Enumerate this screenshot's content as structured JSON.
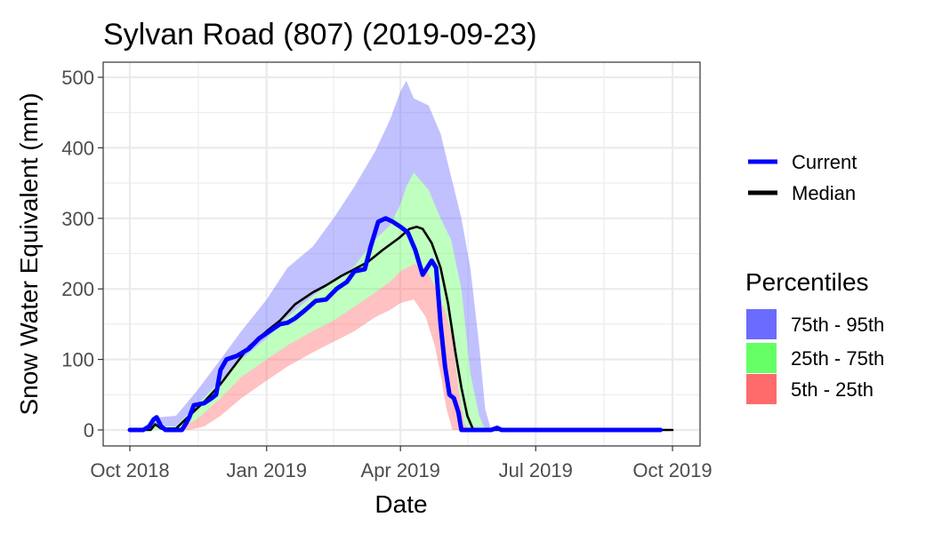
{
  "chart_data": {
    "type": "line",
    "title": "Sylvan Road (807) (2019-09-23)",
    "xlabel": "Date",
    "ylabel": "Snow Water Equivalent (mm)",
    "xlim": [
      "2018-10-01",
      "2019-10-01"
    ],
    "ylim": [
      0,
      500
    ],
    "x_ticks": [
      {
        "date": "2018-10-01",
        "label": "Oct 2018"
      },
      {
        "date": "2019-01-01",
        "label": "Jan 2019"
      },
      {
        "date": "2019-04-01",
        "label": "Apr 2019"
      },
      {
        "date": "2019-07-01",
        "label": "Jul 2019"
      },
      {
        "date": "2019-10-01",
        "label": "Oct 2019"
      }
    ],
    "y_ticks": [
      0,
      100,
      200,
      300,
      400,
      500
    ],
    "grid": true,
    "legend_position": "right",
    "series": [
      {
        "name": "Current",
        "color": "#0000ff",
        "points": [
          [
            "2018-10-01",
            0
          ],
          [
            "2018-10-10",
            0
          ],
          [
            "2018-10-14",
            5
          ],
          [
            "2018-10-17",
            15
          ],
          [
            "2018-10-19",
            18
          ],
          [
            "2018-10-22",
            5
          ],
          [
            "2018-10-25",
            0
          ],
          [
            "2018-11-05",
            0
          ],
          [
            "2018-11-08",
            10
          ],
          [
            "2018-11-10",
            18
          ],
          [
            "2018-11-13",
            35
          ],
          [
            "2018-11-20",
            38
          ],
          [
            "2018-11-25",
            45
          ],
          [
            "2018-11-28",
            50
          ],
          [
            "2018-12-01",
            85
          ],
          [
            "2018-12-05",
            100
          ],
          [
            "2018-12-12",
            105
          ],
          [
            "2018-12-20",
            115
          ],
          [
            "2018-12-27",
            130
          ],
          [
            "2019-01-03",
            140
          ],
          [
            "2019-01-10",
            150
          ],
          [
            "2019-01-15",
            152
          ],
          [
            "2019-01-20",
            158
          ],
          [
            "2019-01-27",
            170
          ],
          [
            "2019-02-03",
            183
          ],
          [
            "2019-02-10",
            185
          ],
          [
            "2019-02-17",
            200
          ],
          [
            "2019-02-24",
            210
          ],
          [
            "2019-03-01",
            225
          ],
          [
            "2019-03-08",
            228
          ],
          [
            "2019-03-12",
            260
          ],
          [
            "2019-03-17",
            295
          ],
          [
            "2019-03-22",
            300
          ],
          [
            "2019-03-27",
            295
          ],
          [
            "2019-04-01",
            288
          ],
          [
            "2019-04-06",
            280
          ],
          [
            "2019-04-11",
            255
          ],
          [
            "2019-04-16",
            220
          ],
          [
            "2019-04-19",
            230
          ],
          [
            "2019-04-22",
            240
          ],
          [
            "2019-04-25",
            230
          ],
          [
            "2019-04-28",
            150
          ],
          [
            "2019-05-01",
            90
          ],
          [
            "2019-05-04",
            50
          ],
          [
            "2019-05-07",
            45
          ],
          [
            "2019-05-10",
            25
          ],
          [
            "2019-05-12",
            0
          ],
          [
            "2019-06-01",
            0
          ],
          [
            "2019-06-05",
            3
          ],
          [
            "2019-06-08",
            0
          ],
          [
            "2019-09-23",
            0
          ]
        ]
      },
      {
        "name": "Median",
        "color": "#000000",
        "points": [
          [
            "2018-10-01",
            0
          ],
          [
            "2018-10-15",
            0
          ],
          [
            "2018-10-18",
            8
          ],
          [
            "2018-10-22",
            2
          ],
          [
            "2018-11-01",
            2
          ],
          [
            "2018-11-10",
            20
          ],
          [
            "2018-11-20",
            40
          ],
          [
            "2018-12-01",
            65
          ],
          [
            "2018-12-10",
            90
          ],
          [
            "2018-12-20",
            118
          ],
          [
            "2019-01-01",
            140
          ],
          [
            "2019-01-10",
            155
          ],
          [
            "2019-01-20",
            178
          ],
          [
            "2019-02-01",
            195
          ],
          [
            "2019-02-10",
            205
          ],
          [
            "2019-02-20",
            218
          ],
          [
            "2019-03-01",
            228
          ],
          [
            "2019-03-10",
            238
          ],
          [
            "2019-03-20",
            255
          ],
          [
            "2019-03-31",
            272
          ],
          [
            "2019-04-07",
            285
          ],
          [
            "2019-04-12",
            288
          ],
          [
            "2019-04-16",
            285
          ],
          [
            "2019-04-22",
            265
          ],
          [
            "2019-04-28",
            230
          ],
          [
            "2019-05-03",
            180
          ],
          [
            "2019-05-08",
            110
          ],
          [
            "2019-05-12",
            60
          ],
          [
            "2019-05-16",
            20
          ],
          [
            "2019-05-20",
            0
          ],
          [
            "2019-10-01",
            0
          ]
        ]
      }
    ],
    "bands": [
      {
        "name": "75th - 95th",
        "color": "#6b6bff",
        "upper": [
          [
            "2018-10-01",
            0
          ],
          [
            "2018-10-10",
            2
          ],
          [
            "2018-10-20",
            18
          ],
          [
            "2018-11-01",
            20
          ],
          [
            "2018-11-15",
            55
          ],
          [
            "2018-12-01",
            100
          ],
          [
            "2018-12-15",
            140
          ],
          [
            "2019-01-01",
            185
          ],
          [
            "2019-01-15",
            230
          ],
          [
            "2019-02-01",
            260
          ],
          [
            "2019-02-15",
            300
          ],
          [
            "2019-03-01",
            345
          ],
          [
            "2019-03-15",
            395
          ],
          [
            "2019-03-25",
            440
          ],
          [
            "2019-04-01",
            480
          ],
          [
            "2019-04-05",
            495
          ],
          [
            "2019-04-10",
            470
          ],
          [
            "2019-04-20",
            460
          ],
          [
            "2019-04-28",
            420
          ],
          [
            "2019-05-05",
            360
          ],
          [
            "2019-05-12",
            300
          ],
          [
            "2019-05-18",
            230
          ],
          [
            "2019-05-24",
            120
          ],
          [
            "2019-05-28",
            30
          ],
          [
            "2019-06-01",
            0
          ],
          [
            "2019-10-01",
            0
          ]
        ],
        "lower": [
          [
            "2018-10-01",
            0
          ],
          [
            "2018-10-20",
            5
          ],
          [
            "2018-11-01",
            5
          ],
          [
            "2018-11-15",
            35
          ],
          [
            "2018-12-01",
            70
          ],
          [
            "2018-12-15",
            100
          ],
          [
            "2019-01-01",
            130
          ],
          [
            "2019-01-15",
            160
          ],
          [
            "2019-02-01",
            190
          ],
          [
            "2019-02-15",
            210
          ],
          [
            "2019-03-01",
            232
          ],
          [
            "2019-03-15",
            270
          ],
          [
            "2019-03-25",
            290
          ],
          [
            "2019-04-01",
            320
          ],
          [
            "2019-04-05",
            345
          ],
          [
            "2019-04-10",
            365
          ],
          [
            "2019-04-20",
            340
          ],
          [
            "2019-04-28",
            300
          ],
          [
            "2019-05-05",
            270
          ],
          [
            "2019-05-12",
            200
          ],
          [
            "2019-05-18",
            80
          ],
          [
            "2019-05-24",
            20
          ],
          [
            "2019-05-28",
            0
          ],
          [
            "2019-10-01",
            0
          ]
        ]
      },
      {
        "name": "25th - 75th",
        "color": "#66ff66",
        "upper": [
          [
            "2018-10-01",
            0
          ],
          [
            "2018-10-20",
            5
          ],
          [
            "2018-11-01",
            5
          ],
          [
            "2018-11-15",
            35
          ],
          [
            "2018-12-01",
            70
          ],
          [
            "2018-12-15",
            100
          ],
          [
            "2019-01-01",
            130
          ],
          [
            "2019-01-15",
            160
          ],
          [
            "2019-02-01",
            190
          ],
          [
            "2019-02-15",
            210
          ],
          [
            "2019-03-01",
            232
          ],
          [
            "2019-03-15",
            270
          ],
          [
            "2019-03-25",
            290
          ],
          [
            "2019-04-01",
            320
          ],
          [
            "2019-04-05",
            345
          ],
          [
            "2019-04-10",
            365
          ],
          [
            "2019-04-20",
            340
          ],
          [
            "2019-04-28",
            300
          ],
          [
            "2019-05-05",
            270
          ],
          [
            "2019-05-12",
            200
          ],
          [
            "2019-05-18",
            80
          ],
          [
            "2019-05-24",
            20
          ],
          [
            "2019-05-28",
            0
          ],
          [
            "2019-10-01",
            0
          ]
        ],
        "lower": [
          [
            "2018-10-01",
            0
          ],
          [
            "2018-11-01",
            0
          ],
          [
            "2018-11-15",
            15
          ],
          [
            "2018-12-01",
            45
          ],
          [
            "2018-12-15",
            75
          ],
          [
            "2019-01-01",
            100
          ],
          [
            "2019-01-15",
            120
          ],
          [
            "2019-02-01",
            140
          ],
          [
            "2019-02-15",
            155
          ],
          [
            "2019-03-01",
            175
          ],
          [
            "2019-03-15",
            195
          ],
          [
            "2019-03-25",
            210
          ],
          [
            "2019-04-01",
            225
          ],
          [
            "2019-04-10",
            235
          ],
          [
            "2019-04-18",
            230
          ],
          [
            "2019-04-25",
            200
          ],
          [
            "2019-05-01",
            170
          ],
          [
            "2019-05-06",
            130
          ],
          [
            "2019-05-10",
            60
          ],
          [
            "2019-05-14",
            10
          ],
          [
            "2019-05-17",
            0
          ],
          [
            "2019-10-01",
            0
          ]
        ]
      },
      {
        "name": "5th - 25th",
        "color": "#ff6b6b",
        "upper": [
          [
            "2018-10-01",
            0
          ],
          [
            "2018-11-01",
            0
          ],
          [
            "2018-11-15",
            15
          ],
          [
            "2018-12-01",
            45
          ],
          [
            "2018-12-15",
            75
          ],
          [
            "2019-01-01",
            100
          ],
          [
            "2019-01-15",
            120
          ],
          [
            "2019-02-01",
            140
          ],
          [
            "2019-02-15",
            155
          ],
          [
            "2019-03-01",
            175
          ],
          [
            "2019-03-15",
            195
          ],
          [
            "2019-03-25",
            210
          ],
          [
            "2019-04-01",
            225
          ],
          [
            "2019-04-10",
            235
          ],
          [
            "2019-04-18",
            230
          ],
          [
            "2019-04-25",
            200
          ],
          [
            "2019-05-01",
            170
          ],
          [
            "2019-05-06",
            130
          ],
          [
            "2019-05-10",
            60
          ],
          [
            "2019-05-14",
            10
          ],
          [
            "2019-05-17",
            0
          ],
          [
            "2019-10-01",
            0
          ]
        ],
        "lower": [
          [
            "2018-10-01",
            0
          ],
          [
            "2018-11-10",
            0
          ],
          [
            "2018-11-20",
            5
          ],
          [
            "2018-12-01",
            20
          ],
          [
            "2018-12-15",
            45
          ],
          [
            "2019-01-01",
            70
          ],
          [
            "2019-01-15",
            90
          ],
          [
            "2019-02-01",
            110
          ],
          [
            "2019-02-15",
            125
          ],
          [
            "2019-03-01",
            140
          ],
          [
            "2019-03-15",
            160
          ],
          [
            "2019-03-25",
            170
          ],
          [
            "2019-04-01",
            180
          ],
          [
            "2019-04-10",
            185
          ],
          [
            "2019-04-18",
            160
          ],
          [
            "2019-04-24",
            120
          ],
          [
            "2019-04-28",
            80
          ],
          [
            "2019-05-02",
            30
          ],
          [
            "2019-05-06",
            0
          ],
          [
            "2019-10-01",
            0
          ]
        ]
      }
    ],
    "legend": {
      "lines_title": "",
      "bands_title": "Percentiles"
    }
  }
}
